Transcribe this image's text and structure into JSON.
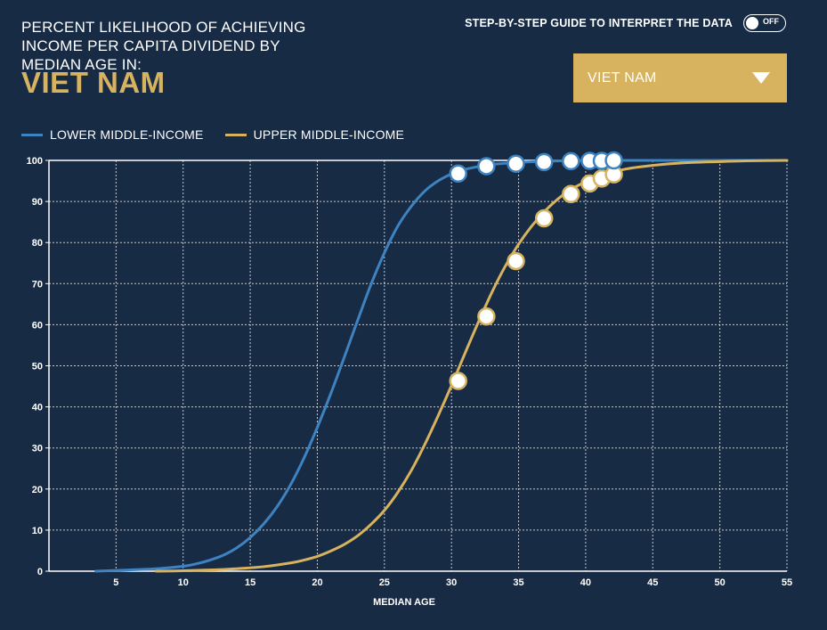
{
  "header": {
    "title": "PERCENT LIKELIHOOD OF ACHIEVING INCOME PER CAPITA DIVIDEND BY MEDIAN AGE IN:",
    "country": "VIET NAM"
  },
  "guide": {
    "label": "STEP-BY-STEP GUIDE TO INTERPRET THE DATA",
    "toggle_state": "OFF"
  },
  "dropdown": {
    "selected": "VIET NAM"
  },
  "colors": {
    "background": "#182b45",
    "lower_middle": "#3e83c1",
    "upper_middle": "#d7b35f",
    "accent": "#d7b35f"
  },
  "chart_data": {
    "type": "line",
    "xlabel": "MEDIAN AGE",
    "ylabel": "",
    "xlim": [
      0,
      55
    ],
    "ylim": [
      0,
      100
    ],
    "xticks": [
      5,
      10,
      15,
      20,
      25,
      30,
      35,
      40,
      45,
      50,
      55
    ],
    "yticks": [
      0,
      10,
      20,
      30,
      40,
      50,
      60,
      70,
      80,
      90,
      100
    ],
    "grid": true,
    "legend_position": "top-left",
    "series": [
      {
        "name": "LOWER MIDDLE-INCOME",
        "color": "#3e83c1",
        "x": [
          3.5,
          6,
          8,
          10,
          11,
          12,
          13,
          14,
          15,
          16,
          17,
          18,
          19,
          20,
          21,
          22,
          23,
          24,
          25,
          26,
          27,
          28,
          29,
          30,
          31,
          32,
          33,
          35,
          37,
          40,
          43,
          46,
          50,
          55
        ],
        "y": [
          0,
          0.3,
          0.6,
          1.2,
          1.8,
          2.7,
          3.9,
          5.7,
          8.2,
          11.5,
          15.7,
          21,
          27.5,
          35,
          43.2,
          52,
          61,
          69.8,
          77.5,
          84,
          88.8,
          92.5,
          95,
          96.7,
          97.8,
          98.5,
          99,
          99.5,
          99.8,
          100,
          100,
          100,
          100,
          100
        ],
        "markers": [
          {
            "x": 30.5,
            "y": 96.8
          },
          {
            "x": 32.6,
            "y": 98.6
          },
          {
            "x": 34.8,
            "y": 99.2
          },
          {
            "x": 36.9,
            "y": 99.6
          },
          {
            "x": 38.9,
            "y": 99.8
          },
          {
            "x": 40.3,
            "y": 99.9
          },
          {
            "x": 41.2,
            "y": 99.9
          },
          {
            "x": 42.1,
            "y": 100
          }
        ]
      },
      {
        "name": "UPPER MIDDLE-INCOME",
        "color": "#d7b35f",
        "x": [
          8,
          10,
          12,
          14,
          16,
          18,
          19,
          20,
          21,
          22,
          23,
          24,
          25,
          26,
          27,
          28,
          29,
          30,
          31,
          32,
          33,
          34,
          35,
          36,
          37,
          38,
          39,
          40,
          41,
          42,
          43,
          44,
          46,
          48,
          50,
          52,
          55
        ],
        "y": [
          0,
          0.1,
          0.3,
          0.6,
          1.1,
          2.0,
          2.7,
          3.6,
          4.9,
          6.5,
          8.6,
          11.4,
          14.8,
          19.2,
          24.5,
          30.8,
          37.8,
          45.2,
          53,
          60.6,
          67.8,
          74.2,
          79.6,
          84.1,
          87.8,
          90.8,
          93.1,
          94.8,
          96.1,
          97.1,
          97.9,
          98.4,
          99.1,
          99.5,
          99.7,
          99.9,
          100
        ],
        "markers": [
          {
            "x": 30.5,
            "y": 46.3
          },
          {
            "x": 32.6,
            "y": 62
          },
          {
            "x": 34.8,
            "y": 75.5
          },
          {
            "x": 36.9,
            "y": 85.9
          },
          {
            "x": 38.9,
            "y": 91.8
          },
          {
            "x": 40.3,
            "y": 94.4
          },
          {
            "x": 41.2,
            "y": 95.6
          },
          {
            "x": 42.1,
            "y": 96.6
          }
        ]
      }
    ]
  }
}
